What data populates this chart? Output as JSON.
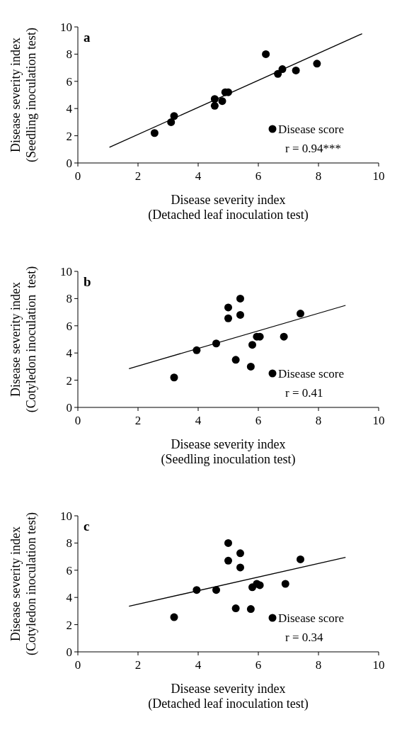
{
  "chart_data": [
    {
      "type": "scatter",
      "title": "a",
      "xlabel": "Disease severity index\n(Detached leaf inoculation test)",
      "ylabel": "Disease severity index\n(Seedling inoculation test)",
      "xlim": [
        0,
        10
      ],
      "ylim": [
        0,
        10
      ],
      "xticks": [
        0,
        2,
        4,
        6,
        8,
        10
      ],
      "yticks": [
        0,
        2,
        4,
        6,
        8,
        10
      ],
      "legend": "bottom right",
      "annotations": [
        "r = 0.94***"
      ],
      "series": [
        {
          "name": "Disease score",
          "color": "#000000",
          "marker": "circle",
          "x": [
            2.55,
            3.1,
            3.2,
            4.55,
            4.55,
            4.8,
            4.9,
            5.0,
            6.25,
            6.65,
            6.8,
            7.25,
            7.95
          ],
          "values": [
            2.2,
            3.0,
            3.45,
            4.7,
            4.2,
            4.55,
            5.2,
            5.2,
            8.0,
            6.55,
            6.9,
            6.8,
            7.3
          ]
        },
        {
          "type": "line",
          "color": "#000000",
          "marker": "none",
          "line_style": "solid",
          "x": [
            1.05,
            9.45
          ],
          "values": [
            1.15,
            9.5
          ]
        }
      ]
    },
    {
      "type": "scatter",
      "title": "b",
      "xlabel": "Disease severity index\n(Seedling inoculation test)",
      "ylabel": "Disease severity index\n(Cotyledon inoculation  test)",
      "xlim": [
        0,
        10
      ],
      "ylim": [
        0,
        10
      ],
      "xticks": [
        0,
        2,
        4,
        6,
        8,
        10
      ],
      "yticks": [
        0,
        2,
        4,
        6,
        8,
        10
      ],
      "legend": "bottom right",
      "annotations": [
        "r = 0.41"
      ],
      "series": [
        {
          "name": "Disease score",
          "color": "#000000",
          "marker": "circle",
          "x": [
            3.2,
            3.95,
            4.6,
            5.0,
            5.0,
            5.4,
            5.4,
            5.25,
            5.75,
            5.8,
            5.95,
            6.05,
            6.85,
            7.4
          ],
          "values": [
            2.2,
            4.2,
            4.7,
            7.35,
            6.55,
            8.0,
            6.8,
            3.5,
            3.0,
            4.6,
            5.2,
            5.2,
            5.2,
            6.9
          ]
        },
        {
          "type": "line",
          "color": "#000000",
          "marker": "none",
          "line_style": "solid",
          "x": [
            1.7,
            8.9
          ],
          "values": [
            2.85,
            7.5
          ]
        }
      ]
    },
    {
      "type": "scatter",
      "title": "c",
      "xlabel": "Disease severity index\n(Detached leaf inoculation test)",
      "ylabel": "Disease severity index\n(Cotyledon inoculation test)",
      "xlim": [
        0,
        10
      ],
      "ylim": [
        0,
        10
      ],
      "xticks": [
        0,
        2,
        4,
        6,
        8,
        10
      ],
      "yticks": [
        0,
        2,
        4,
        6,
        8,
        10
      ],
      "legend": "bottom right",
      "annotations": [
        "r = 0.34"
      ],
      "series": [
        {
          "name": "Disease score",
          "color": "#000000",
          "marker": "circle",
          "x": [
            3.2,
            3.95,
            4.6,
            5.0,
            5.0,
            5.4,
            5.4,
            5.25,
            5.75,
            5.8,
            5.95,
            6.05,
            6.9,
            7.4
          ],
          "values": [
            2.55,
            4.55,
            4.55,
            8.0,
            6.7,
            7.25,
            6.2,
            3.2,
            3.15,
            4.75,
            5.0,
            4.9,
            5.0,
            6.8
          ]
        },
        {
          "type": "line",
          "color": "#000000",
          "marker": "none",
          "line_style": "solid",
          "x": [
            1.7,
            8.9
          ],
          "values": [
            3.35,
            6.95
          ]
        }
      ]
    }
  ]
}
